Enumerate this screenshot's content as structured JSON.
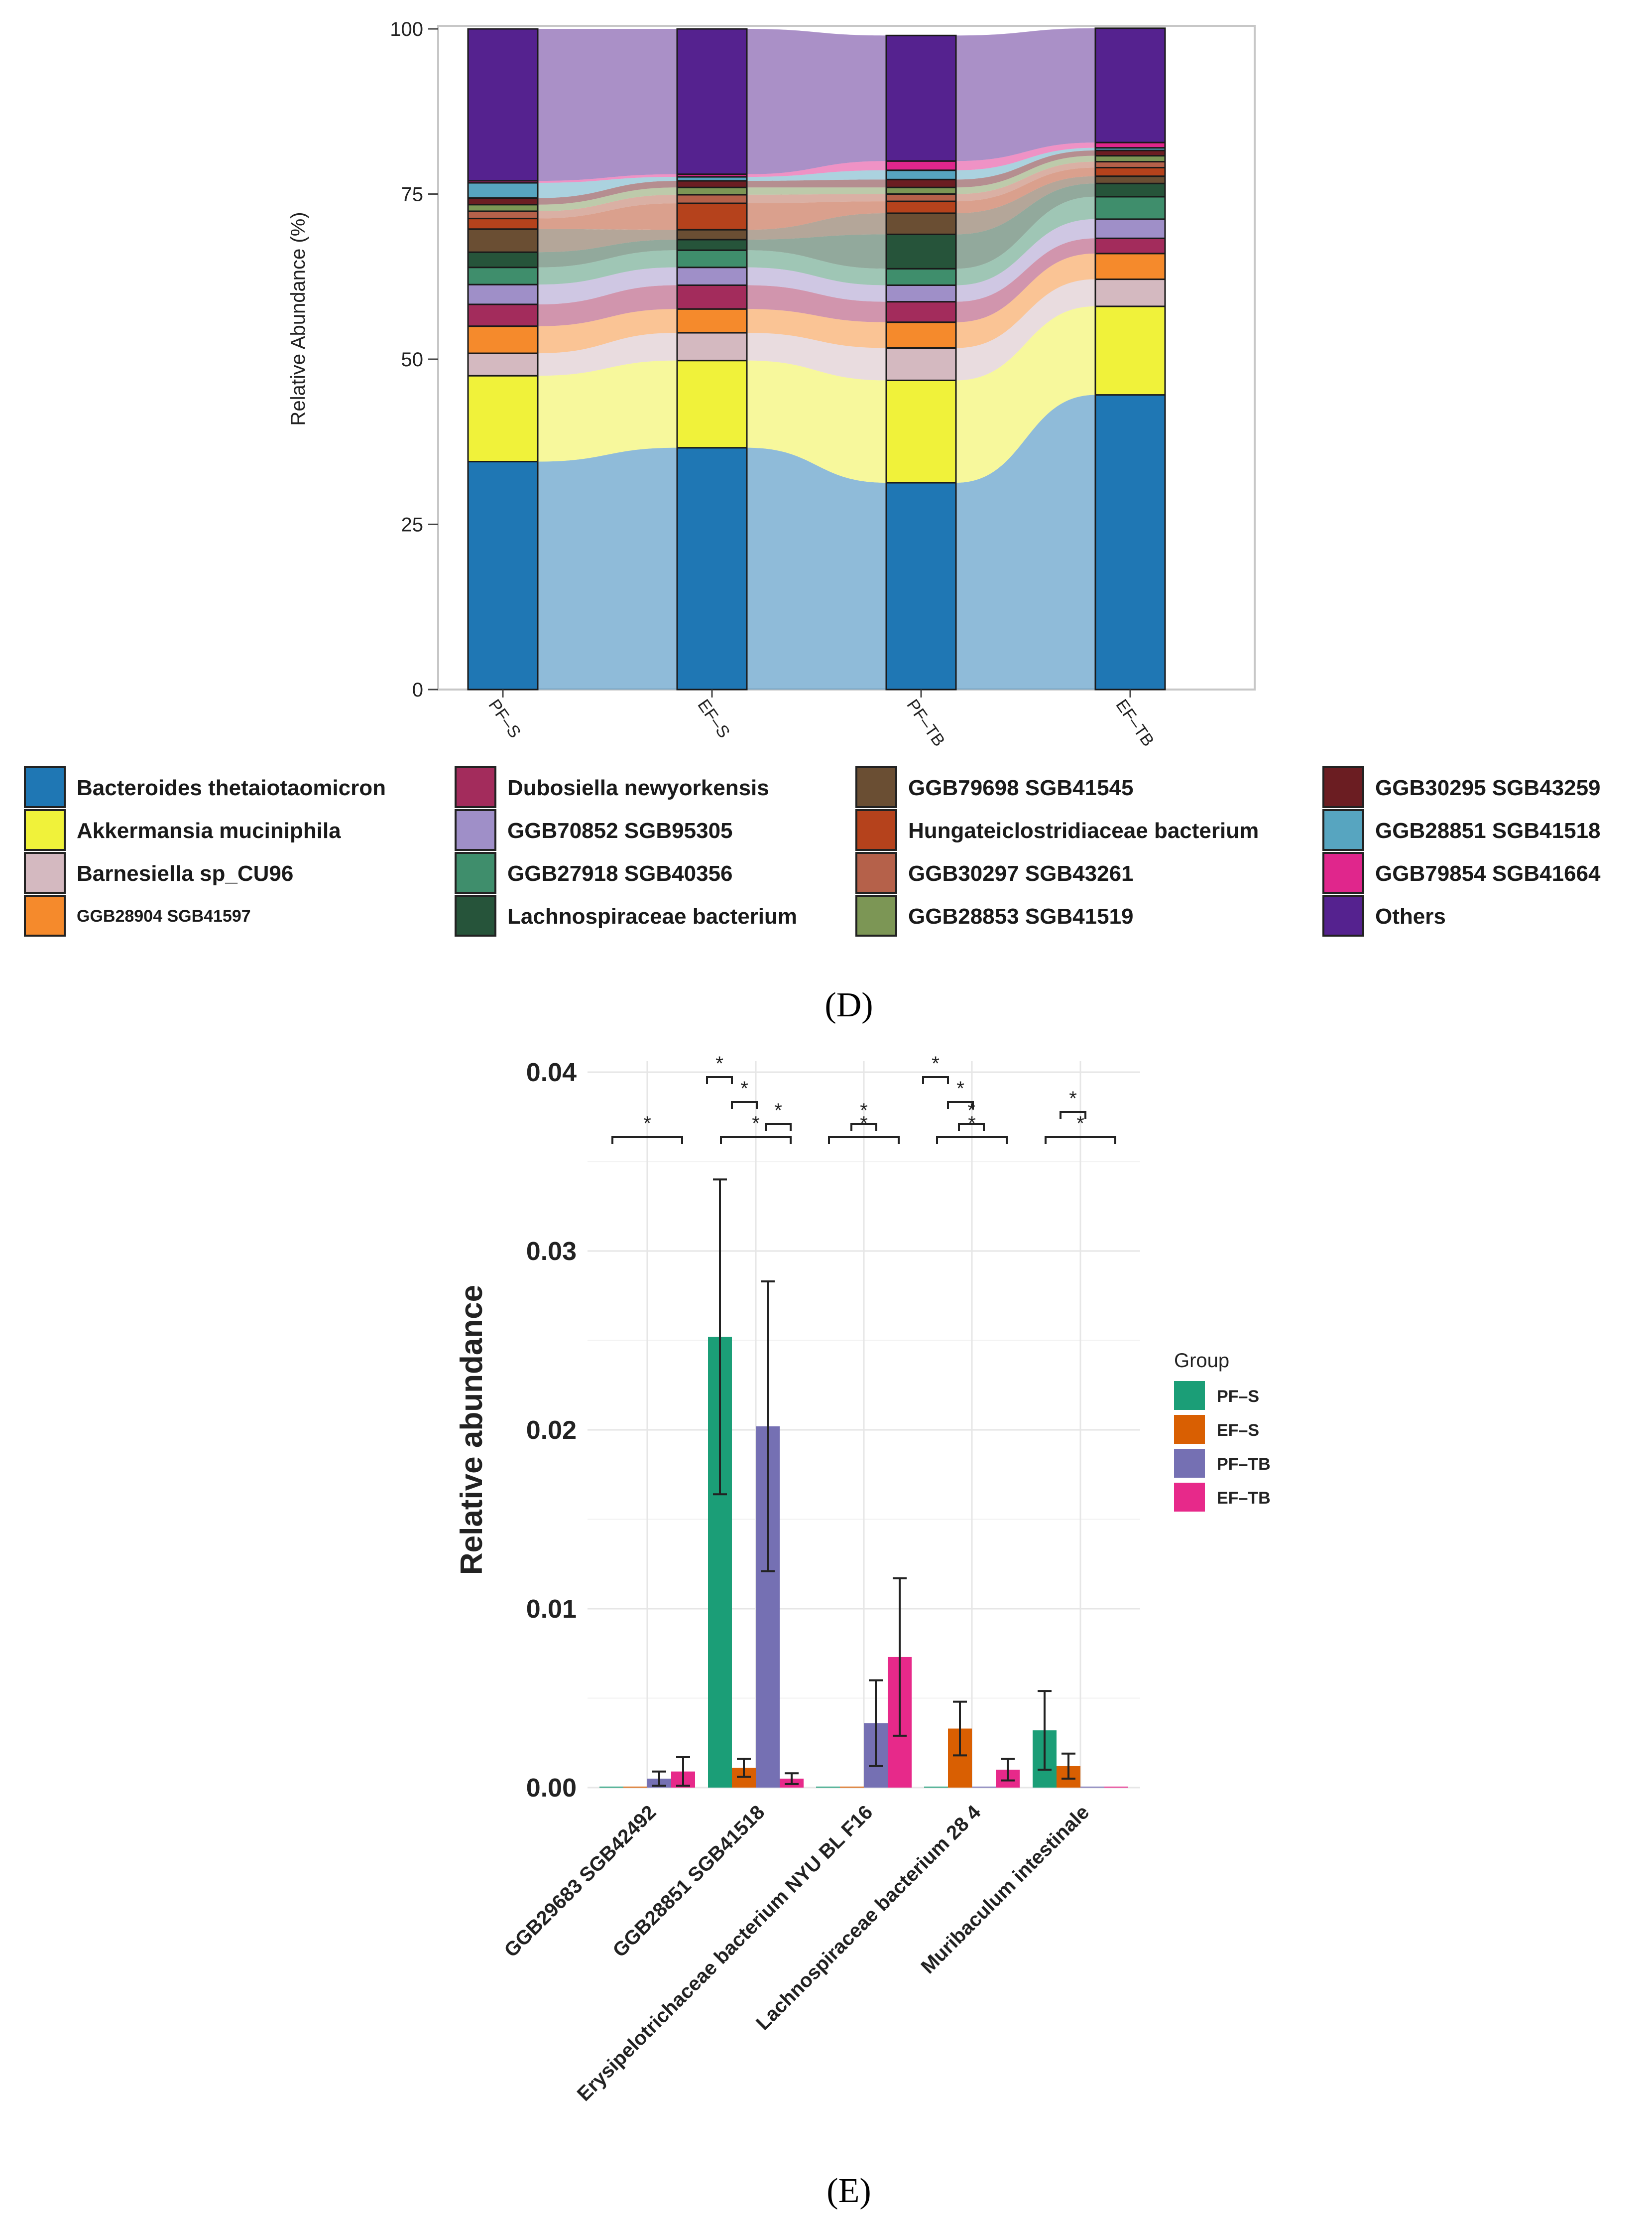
{
  "panel_labels": {
    "d": "(D)",
    "e": "(E)"
  },
  "chart_data": [
    {
      "type": "bar",
      "subtype": "stacked-alluvial",
      "title": "",
      "xlabel": "",
      "ylabel": "Relative Abundance (%)",
      "ylim": [
        0,
        100
      ],
      "yticks": [
        0,
        25,
        50,
        75,
        100
      ],
      "categories": [
        "PF–S",
        "EF–S",
        "PF–TB",
        "EF–TB"
      ],
      "legend_position": "bottom",
      "series": [
        {
          "name": "Bacteroides thetaiotaomicron",
          "color": "#1F77B4",
          "values": [
            34.5,
            36.6,
            31.3,
            44.6
          ]
        },
        {
          "name": "Akkermansia muciniphila",
          "color": "#F0F23A",
          "values": [
            13.0,
            13.2,
            15.5,
            13.4
          ]
        },
        {
          "name": "Barnesiella sp_CU96",
          "color": "#D4B9C0",
          "values": [
            3.4,
            4.2,
            4.9,
            4.1
          ]
        },
        {
          "name": "GGB28904 SGB41597",
          "color": "#F58A2C",
          "values": [
            4.1,
            3.6,
            3.9,
            3.9
          ]
        },
        {
          "name": "Dubosiella newyorkensis",
          "color": "#A32C5C",
          "values": [
            3.3,
            3.6,
            3.1,
            2.3
          ]
        },
        {
          "name": "GGB70852 SGB95305",
          "color": "#9F8FC8",
          "values": [
            3.0,
            2.7,
            2.5,
            2.9
          ]
        },
        {
          "name": "GGB27918 SGB40356",
          "color": "#3F8E6C",
          "values": [
            2.6,
            2.6,
            2.5,
            3.4
          ]
        },
        {
          "name": "Lachnospiraceae bacterium",
          "color": "#26543A",
          "values": [
            2.3,
            1.6,
            5.2,
            2.0
          ]
        },
        {
          "name": "GGB79698 SGB41545",
          "color": "#6A4E33",
          "values": [
            3.5,
            1.5,
            3.2,
            1.1
          ]
        },
        {
          "name": "Hungateiclostridiaceae bacterium",
          "color": "#B5421C",
          "values": [
            1.6,
            4.0,
            1.8,
            1.3
          ]
        },
        {
          "name": "GGB30297 SGB43261",
          "color": "#B5614A",
          "values": [
            1.1,
            1.3,
            1.1,
            0.9
          ]
        },
        {
          "name": "GGB28853 SGB41519",
          "color": "#7C9655",
          "values": [
            1.0,
            1.1,
            1.0,
            0.9
          ]
        },
        {
          "name": "GGB30295 SGB43259",
          "color": "#6B1D22",
          "values": [
            1.0,
            1.0,
            1.2,
            0.8
          ]
        },
        {
          "name": "GGB28851 SGB41518",
          "color": "#57A5C0",
          "values": [
            2.3,
            0.6,
            1.4,
            0.4
          ]
        },
        {
          "name": "GGB79854 SGB41664",
          "color": "#E0268C",
          "values": [
            0.3,
            0.4,
            1.4,
            0.8
          ]
        },
        {
          "name": "Others",
          "color": "#55228F",
          "values": [
            23.0,
            22.0,
            19.0,
            17.3
          ]
        }
      ]
    },
    {
      "type": "bar",
      "subtype": "grouped-with-errorbars",
      "title": "",
      "xlabel": "",
      "ylabel": "Relative abundance",
      "ylim": [
        0,
        0.04
      ],
      "yticks": [
        0.0,
        0.01,
        0.02,
        0.03,
        0.04
      ],
      "ytick_labels": [
        "0.00",
        "0.01",
        "0.02",
        "0.03",
        "0.04"
      ],
      "categories": [
        "GGB29683 SGB42492",
        "GGB28851 SGB41518",
        "Erysipelotrichaceae bacterium NYU BL F16",
        "Lachnospiraceae bacterium 28 4",
        "Muribaculum intestinale"
      ],
      "legend_title": "Group",
      "legend_position": "right",
      "significance_marker": "*",
      "series": [
        {
          "name": "PF–S",
          "color": "#1B9E77",
          "values": [
            0.0,
            0.0252,
            0.0,
            0.0,
            0.0032
          ],
          "errors": [
            0.0,
            0.0088,
            0.0,
            0.0,
            0.0022
          ]
        },
        {
          "name": "EF–S",
          "color": "#D95F02",
          "values": [
            0.0,
            0.0011,
            0.0,
            0.0033,
            0.0012
          ],
          "errors": [
            0.0,
            0.0005,
            0.0,
            0.0015,
            0.0007
          ]
        },
        {
          "name": "PF–TB",
          "color": "#7570B3",
          "values": [
            0.0005,
            0.0202,
            0.0036,
            0.0,
            0.0
          ],
          "errors": [
            0.0004,
            0.0081,
            0.0024,
            0.0,
            0.0
          ]
        },
        {
          "name": "EF–TB",
          "color": "#E7298A",
          "values": [
            0.0009,
            0.0005,
            0.0073,
            0.001,
            0.0
          ],
          "errors": [
            0.0008,
            0.0003,
            0.0044,
            0.0006,
            0.0
          ]
        }
      ]
    }
  ]
}
